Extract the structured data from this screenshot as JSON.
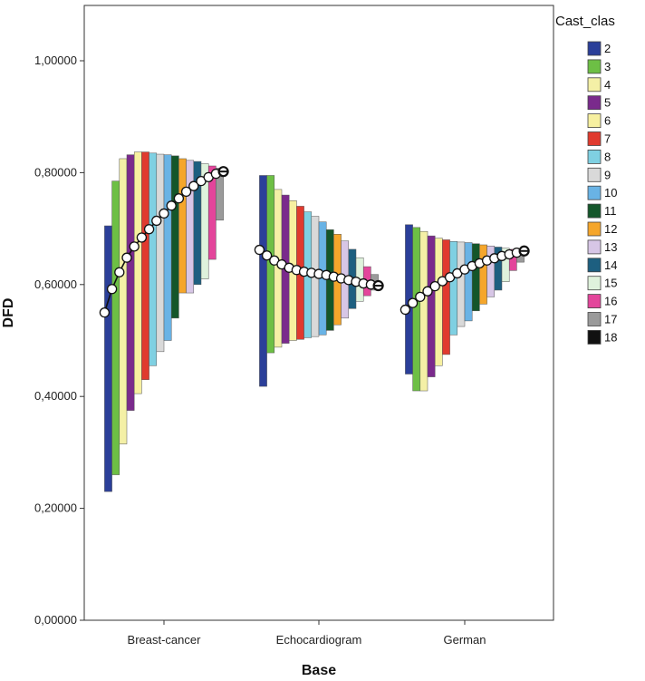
{
  "chart_data": {
    "type": "bar",
    "xlabel": "Base",
    "ylabel": "DFD",
    "ylim": [
      0,
      1.1
    ],
    "yticks": [
      "0,00000",
      "0,20000",
      "0,40000",
      "0,60000",
      "0,80000",
      "1,00000"
    ],
    "categories": [
      "Breast-cancer",
      "Echocardiogram",
      "German"
    ],
    "legend": {
      "title": "Cast_clas",
      "placement": "right",
      "entries": [
        {
          "label": "2",
          "color": "#2b3f99"
        },
        {
          "label": "3",
          "color": "#6dbf45"
        },
        {
          "label": "4",
          "color": "#f4f0a6"
        },
        {
          "label": "5",
          "color": "#7a2a8c"
        },
        {
          "label": "6",
          "color": "#f7f0a0"
        },
        {
          "label": "7",
          "color": "#e03a2e"
        },
        {
          "label": "8",
          "color": "#7fd0e2"
        },
        {
          "label": "9",
          "color": "#d9d9d9"
        },
        {
          "label": "10",
          "color": "#69b3e5"
        },
        {
          "label": "11",
          "color": "#14562a"
        },
        {
          "label": "12",
          "color": "#f5a62b"
        },
        {
          "label": "13",
          "color": "#d7c6e6"
        },
        {
          "label": "14",
          "color": "#1d5f80"
        },
        {
          "label": "15",
          "color": "#dff2dc"
        },
        {
          "label": "16",
          "color": "#e3459b"
        },
        {
          "label": "17",
          "color": "#9a9a9a"
        },
        {
          "label": "18",
          "color": "#111111"
        }
      ]
    },
    "groups": [
      {
        "category": "Breast-cancer",
        "bars": [
          {
            "cls": "2",
            "low": 0.23,
            "high": 0.705
          },
          {
            "cls": "3",
            "low": 0.26,
            "high": 0.785
          },
          {
            "cls": "4",
            "low": 0.315,
            "high": 0.825
          },
          {
            "cls": "5",
            "low": 0.375,
            "high": 0.832
          },
          {
            "cls": "6",
            "low": 0.405,
            "high": 0.837
          },
          {
            "cls": "7",
            "low": 0.43,
            "high": 0.837
          },
          {
            "cls": "8",
            "low": 0.455,
            "high": 0.835
          },
          {
            "cls": "9",
            "low": 0.48,
            "high": 0.833
          },
          {
            "cls": "10",
            "low": 0.5,
            "high": 0.832
          },
          {
            "cls": "11",
            "low": 0.54,
            "high": 0.83
          },
          {
            "cls": "12",
            "low": 0.585,
            "high": 0.825
          },
          {
            "cls": "13",
            "low": 0.585,
            "high": 0.822
          },
          {
            "cls": "14",
            "low": 0.6,
            "high": 0.82
          },
          {
            "cls": "15",
            "low": 0.61,
            "high": 0.816
          },
          {
            "cls": "16",
            "low": 0.645,
            "high": 0.812
          },
          {
            "cls": "17",
            "low": 0.715,
            "high": 0.808
          }
        ],
        "mean_line": [
          0.55,
          0.592,
          0.622,
          0.648,
          0.668,
          0.684,
          0.699,
          0.714,
          0.727,
          0.741,
          0.754,
          0.766,
          0.776,
          0.785,
          0.792,
          0.798,
          0.802
        ]
      },
      {
        "category": "Echocardiogram",
        "bars": [
          {
            "cls": "2",
            "low": 0.418,
            "high": 0.795
          },
          {
            "cls": "3",
            "low": 0.478,
            "high": 0.795
          },
          {
            "cls": "4",
            "low": 0.488,
            "high": 0.77
          },
          {
            "cls": "5",
            "low": 0.495,
            "high": 0.76
          },
          {
            "cls": "6",
            "low": 0.5,
            "high": 0.75
          },
          {
            "cls": "7",
            "low": 0.502,
            "high": 0.74
          },
          {
            "cls": "8",
            "low": 0.505,
            "high": 0.73
          },
          {
            "cls": "9",
            "low": 0.507,
            "high": 0.722
          },
          {
            "cls": "10",
            "low": 0.51,
            "high": 0.712
          },
          {
            "cls": "11",
            "low": 0.518,
            "high": 0.698
          },
          {
            "cls": "12",
            "low": 0.528,
            "high": 0.69
          },
          {
            "cls": "13",
            "low": 0.54,
            "high": 0.678
          },
          {
            "cls": "14",
            "low": 0.557,
            "high": 0.663
          },
          {
            "cls": "15",
            "low": 0.57,
            "high": 0.648
          },
          {
            "cls": "16",
            "low": 0.58,
            "high": 0.632
          },
          {
            "cls": "17",
            "low": 0.59,
            "high": 0.618
          }
        ],
        "mean_line": [
          0.662,
          0.652,
          0.643,
          0.636,
          0.63,
          0.626,
          0.623,
          0.621,
          0.619,
          0.617,
          0.614,
          0.611,
          0.608,
          0.605,
          0.602,
          0.6,
          0.598
        ]
      },
      {
        "category": "German",
        "bars": [
          {
            "cls": "2",
            "low": 0.44,
            "high": 0.707
          },
          {
            "cls": "3",
            "low": 0.41,
            "high": 0.702
          },
          {
            "cls": "4",
            "low": 0.41,
            "high": 0.695
          },
          {
            "cls": "5",
            "low": 0.435,
            "high": 0.687
          },
          {
            "cls": "6",
            "low": 0.455,
            "high": 0.683
          },
          {
            "cls": "7",
            "low": 0.475,
            "high": 0.68
          },
          {
            "cls": "8",
            "low": 0.51,
            "high": 0.677
          },
          {
            "cls": "9",
            "low": 0.525,
            "high": 0.676
          },
          {
            "cls": "10",
            "low": 0.535,
            "high": 0.675
          },
          {
            "cls": "11",
            "low": 0.553,
            "high": 0.673
          },
          {
            "cls": "12",
            "low": 0.565,
            "high": 0.671
          },
          {
            "cls": "13",
            "low": 0.578,
            "high": 0.669
          },
          {
            "cls": "14",
            "low": 0.59,
            "high": 0.667
          },
          {
            "cls": "15",
            "low": 0.605,
            "high": 0.665
          },
          {
            "cls": "16",
            "low": 0.625,
            "high": 0.663
          },
          {
            "cls": "17",
            "low": 0.64,
            "high": 0.661
          }
        ],
        "mean_line": [
          0.555,
          0.567,
          0.578,
          0.588,
          0.597,
          0.606,
          0.613,
          0.62,
          0.627,
          0.633,
          0.638,
          0.643,
          0.647,
          0.651,
          0.654,
          0.657,
          0.66
        ]
      }
    ]
  }
}
